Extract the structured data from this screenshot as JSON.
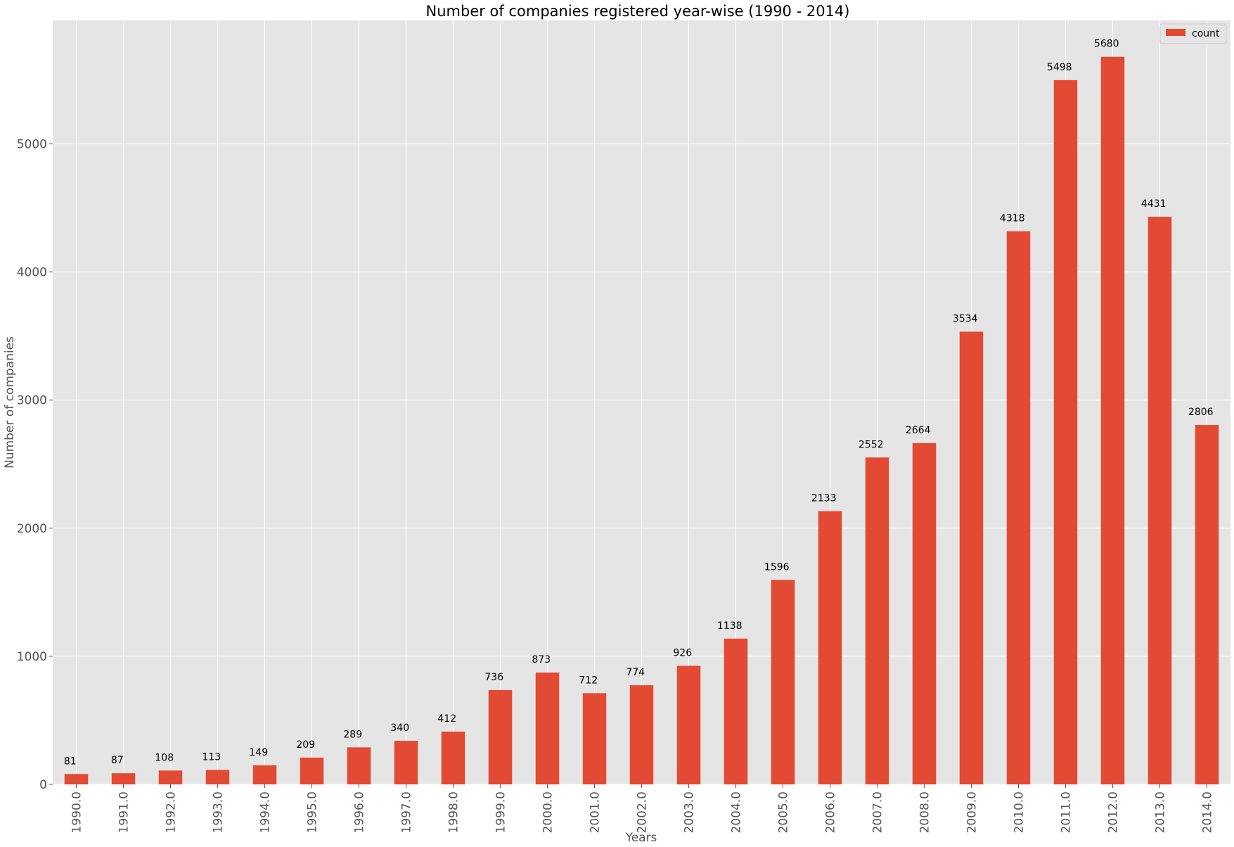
{
  "chart_data": {
    "type": "bar",
    "title": "Number of companies registered year-wise (1990 - 2014)",
    "xlabel": "Years",
    "ylabel": "Number of companies",
    "categories": [
      "1990.0",
      "1991.0",
      "1992.0",
      "1993.0",
      "1994.0",
      "1995.0",
      "1996.0",
      "1997.0",
      "1998.0",
      "1999.0",
      "2000.0",
      "2001.0",
      "2002.0",
      "2003.0",
      "2004.0",
      "2005.0",
      "2006.0",
      "2007.0",
      "2008.0",
      "2009.0",
      "2010.0",
      "2011.0",
      "2012.0",
      "2013.0",
      "2014.0"
    ],
    "series": [
      {
        "name": "count",
        "values": [
          81,
          87,
          108,
          113,
          149,
          209,
          289,
          340,
          412,
          736,
          873,
          712,
          774,
          926,
          1138,
          1596,
          2133,
          2552,
          2664,
          3534,
          4318,
          5498,
          5680,
          4431,
          2806
        ]
      }
    ],
    "data_labels": [
      "81",
      "87",
      "108",
      "113",
      "149",
      "209",
      "289",
      "340",
      "412",
      "736",
      "873",
      "712",
      "774",
      "926",
      "1138",
      "1596",
      "2133",
      "2552",
      "2664",
      "3534",
      "4318",
      "5498",
      "5680",
      "4431",
      "2806"
    ],
    "yticks": [
      0,
      1000,
      2000,
      3000,
      4000,
      5000
    ],
    "ytick_labels": [
      "0",
      "1000",
      "2000",
      "3000",
      "4000",
      "5000"
    ],
    "ylim": [
      0,
      5964
    ],
    "grid": true,
    "legend_position": "top-right",
    "colors": {
      "bar": "#E24A33",
      "background": "#E5E5E5",
      "grid": "#FFFFFF"
    }
  }
}
